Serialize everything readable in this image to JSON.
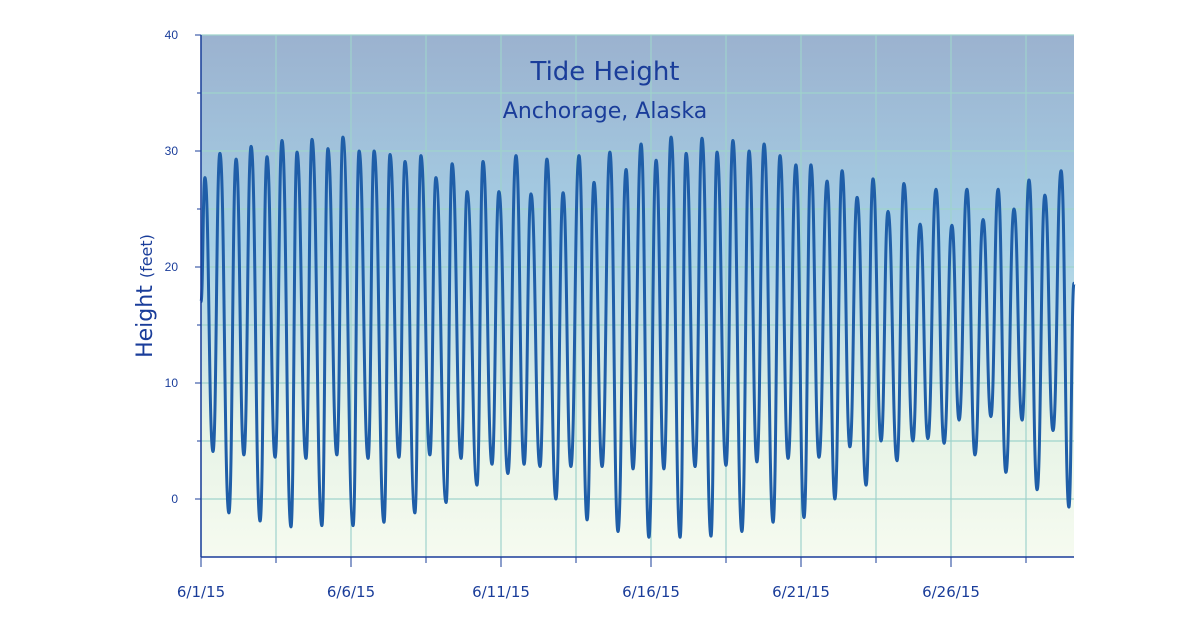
{
  "chart_data": {
    "type": "line",
    "title": "Tide Height",
    "subtitle": "Anchorage, Alaska",
    "y_label": "Height",
    "y_label_unit": "(feet)",
    "xlim": [
      1,
      30.1
    ],
    "ylim": [
      -5,
      40
    ],
    "xticks": [
      {
        "value": 1,
        "label": "6/1/15"
      },
      {
        "value": 6,
        "label": "6/6/15"
      },
      {
        "value": 11,
        "label": "6/11/15"
      },
      {
        "value": 16,
        "label": "6/16/15"
      },
      {
        "value": 21,
        "label": "6/21/15"
      },
      {
        "value": 26,
        "label": "6/26/15"
      }
    ],
    "xminor_ticks": [
      3.5,
      8.5,
      13.5,
      18.5,
      23.5,
      28.5
    ],
    "yticks": [
      0,
      10,
      20,
      30,
      40
    ],
    "yminor_ticks": [
      5,
      15,
      25,
      35
    ],
    "grid": true,
    "x": [
      1.0,
      1.13,
      1.4,
      1.63,
      1.93,
      2.17,
      2.43,
      2.67,
      2.97,
      3.2,
      3.47,
      3.7,
      4.0,
      4.2,
      4.5,
      4.7,
      5.03,
      5.23,
      5.53,
      5.73,
      6.07,
      6.27,
      6.57,
      6.77,
      7.1,
      7.3,
      7.6,
      7.8,
      8.13,
      8.33,
      8.63,
      8.83,
      9.17,
      9.37,
      9.67,
      9.87,
      10.2,
      10.4,
      10.7,
      10.93,
      11.23,
      11.5,
      11.77,
      12.0,
      12.3,
      12.53,
      12.83,
      13.07,
      13.33,
      13.6,
      13.87,
      14.1,
      14.37,
      14.63,
      14.9,
      15.17,
      15.4,
      15.67,
      15.93,
      16.17,
      16.43,
      16.67,
      16.97,
      17.17,
      17.47,
      17.7,
      18.0,
      18.2,
      18.5,
      18.73,
      19.03,
      19.27,
      19.53,
      19.77,
      20.07,
      20.3,
      20.57,
      20.83,
      21.1,
      21.33,
      21.6,
      21.87,
      22.13,
      22.37,
      22.63,
      22.87,
      23.17,
      23.4,
      23.67,
      23.9,
      24.2,
      24.43,
      24.73,
      24.97,
      25.23,
      25.5,
      25.77,
      26.03,
      26.27,
      26.53,
      26.8,
      27.07,
      27.33,
      27.57,
      27.83,
      28.1,
      28.37,
      28.6,
      28.87,
      29.13,
      29.4,
      29.67,
      29.93,
      30.1
    ],
    "series": [
      {
        "name": "Tide Height",
        "color": "#1f5ea8",
        "values": [
          17,
          27.7,
          4.1,
          29.8,
          -1.2,
          29.3,
          3.8,
          30.4,
          -1.9,
          29.5,
          3.6,
          30.9,
          -2.4,
          29.9,
          3.5,
          31.0,
          -2.3,
          30.2,
          3.8,
          31.2,
          -2.3,
          30.0,
          3.5,
          30.0,
          -2.0,
          29.7,
          3.6,
          29.1,
          -1.2,
          29.6,
          3.8,
          27.7,
          -0.3,
          28.9,
          3.5,
          26.5,
          1.2,
          29.1,
          3.0,
          26.5,
          2.2,
          29.6,
          3.0,
          26.3,
          2.8,
          29.3,
          0.0,
          26.4,
          2.8,
          29.6,
          -1.8,
          27.3,
          2.8,
          29.9,
          -2.8,
          28.4,
          2.6,
          30.6,
          -3.3,
          29.2,
          2.6,
          31.2,
          -3.3,
          29.8,
          2.8,
          31.1,
          -3.2,
          29.9,
          2.9,
          30.9,
          -2.8,
          30.0,
          3.2,
          30.6,
          -2.0,
          29.6,
          3.5,
          28.8,
          -1.6,
          28.8,
          3.6,
          27.4,
          0.0,
          28.3,
          4.5,
          26.0,
          1.2,
          27.6,
          5.0,
          24.8,
          3.3,
          27.2,
          5.0,
          23.7,
          5.2,
          26.7,
          4.8,
          23.6,
          6.8,
          26.7,
          3.8,
          24.1,
          7.1,
          26.7,
          2.3,
          25.0,
          6.8,
          27.5,
          0.8,
          26.2,
          5.9,
          28.3,
          -0.7,
          18.6
        ]
      }
    ]
  }
}
